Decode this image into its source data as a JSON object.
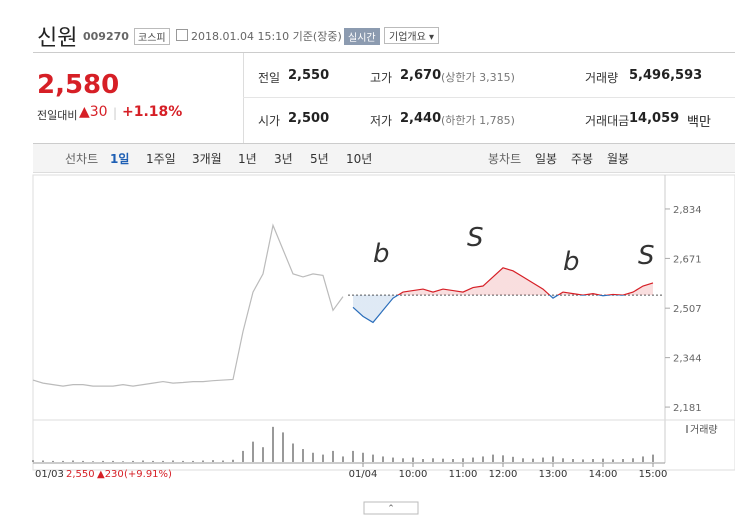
{
  "header": {
    "name": "신원",
    "code": "009270",
    "market": "코스피",
    "time": "2018.01.04 15:10 기준(장중)",
    "realtime_button": "실시간",
    "company_button": "기업개요"
  },
  "price": {
    "current": "2,580",
    "change_label": "전일대비",
    "change": "▲30",
    "change_rate": "+1.18%"
  },
  "stats": [
    {
      "label": "전일",
      "value": "2,550"
    },
    {
      "label": "고가",
      "value": "2,670",
      "note": "(상한가 3,315)"
    },
    {
      "label": "거래량",
      "value": "5,496,593"
    },
    {
      "label": "시가",
      "value": "2,500"
    },
    {
      "label": "저가",
      "value": "2,440",
      "note": "(하한가 1,785)"
    },
    {
      "label": "거래대금",
      "value": "14,059",
      "unit": "백만"
    }
  ],
  "tabs": {
    "line_label": "선차트",
    "line_tabs": [
      "1일",
      "1주일",
      "3개월",
      "1년",
      "3년",
      "5년",
      "10년"
    ],
    "candle_label": "봉차트",
    "candle_tabs": [
      "일봉",
      "주봉",
      "월봉"
    ]
  },
  "chart_data": {
    "type": "line",
    "ylim": [
      2145,
      2880
    ],
    "yticks": [
      {
        "value": 2834,
        "label": "2,834"
      },
      {
        "value": 2671,
        "label": "2,671"
      },
      {
        "value": 2507,
        "label": "2,507"
      },
      {
        "value": 2344,
        "label": "2,344"
      },
      {
        "value": 2181,
        "label": "2,181"
      }
    ],
    "xlim": [
      0,
      63
    ],
    "xticks": [
      {
        "value": 33,
        "label": "01/04"
      },
      {
        "value": 38,
        "label": "10:00"
      },
      {
        "value": 43,
        "label": "11:00"
      },
      {
        "value": 47,
        "label": "12:00"
      },
      {
        "value": 52,
        "label": "13:00"
      },
      {
        "value": 57,
        "label": "14:00"
      },
      {
        "value": 62,
        "label": "15:00"
      }
    ],
    "baseline": 2550,
    "series": [
      {
        "color": "#bbbbbb",
        "values": [
          2270,
          2260,
          2255,
          2250,
          2255,
          2255,
          2250,
          2250,
          2250,
          2255,
          2250,
          2255,
          2260,
          2265,
          2260,
          2262,
          2265,
          2265,
          2268,
          2270,
          2272,
          2430,
          2560,
          2620,
          2780,
          2700,
          2620,
          2610,
          2620,
          2615,
          2500,
          2545,
          null,
          null,
          null,
          null,
          null,
          null,
          null,
          null,
          null,
          null,
          null,
          null,
          null,
          null,
          null,
          null,
          null,
          null,
          null,
          null,
          null,
          null,
          null,
          null,
          null,
          null,
          null,
          null,
          null,
          null,
          null
        ]
      },
      {
        "color": "#d61f26",
        "color_down": "#2a6ebb",
        "values": [
          null,
          null,
          null,
          null,
          null,
          null,
          null,
          null,
          null,
          null,
          null,
          null,
          null,
          null,
          null,
          null,
          null,
          null,
          null,
          null,
          null,
          null,
          null,
          null,
          null,
          null,
          null,
          null,
          null,
          null,
          null,
          null,
          2510,
          2480,
          2460,
          2500,
          2540,
          2560,
          2565,
          2570,
          2560,
          2570,
          2565,
          2560,
          2575,
          2580,
          2610,
          2640,
          2630,
          2610,
          2590,
          2570,
          2540,
          2560,
          2555,
          2550,
          2555,
          2548,
          2552,
          2550,
          2560,
          2580,
          2590
        ]
      }
    ],
    "volume": {
      "label": "거래량",
      "color": "#999999",
      "ylim": [
        0,
        100
      ],
      "values": [
        5,
        4,
        3,
        3,
        4,
        3,
        2,
        3,
        3,
        2,
        3,
        4,
        3,
        3,
        4,
        3,
        3,
        4,
        5,
        4,
        6,
        30,
        55,
        40,
        95,
        80,
        50,
        35,
        25,
        20,
        30,
        15,
        30,
        25,
        20,
        15,
        12,
        10,
        12,
        8,
        10,
        9,
        8,
        10,
        12,
        15,
        20,
        18,
        14,
        10,
        9,
        12,
        15,
        10,
        8,
        7,
        8,
        9,
        7,
        8,
        10,
        15,
        20
      ]
    },
    "prev_day": {
      "date": "01/03",
      "close": "2,550",
      "change": "▲230",
      "rate": "(+9.91%)"
    },
    "annotations": [
      "b",
      "S",
      "b",
      "S"
    ]
  }
}
